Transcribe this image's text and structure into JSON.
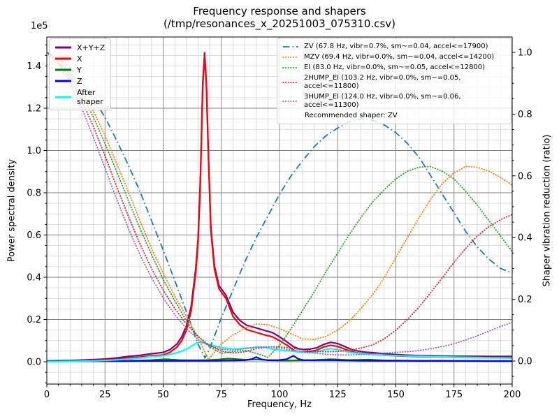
{
  "title": {
    "line1": "Frequency response and shapers",
    "line2": "(/tmp/resonances_x_20251003_075310.csv)"
  },
  "axes": {
    "x": {
      "label": "Frequency, Hz",
      "min": 0,
      "max": 200,
      "tick_labels": [
        "0",
        "25",
        "50",
        "75",
        "100",
        "125",
        "150",
        "175",
        "200"
      ],
      "minor_step": 5
    },
    "y_left": {
      "label": "Power spectral density",
      "offset_text": "1e5",
      "tick_labels": [
        "0.0",
        "0.2",
        "0.4",
        "0.6",
        "0.8",
        "1.0",
        "1.2",
        "1.4"
      ],
      "minor_step": 0.05
    },
    "y_right": {
      "label": "Shaper vibration reduction (ratio)",
      "tick_labels": [
        "0.0",
        "0.2",
        "0.4",
        "0.6",
        "0.8",
        "1.0"
      ],
      "minor_step": 0.05
    }
  },
  "grid": {
    "major_color": "#808080",
    "minor_color": "#d3d3d3",
    "visible": "major+minor"
  },
  "legend_psd": {
    "entries": [
      {
        "label": "X+Y+Z",
        "color": "#800080"
      },
      {
        "label": "X",
        "color": "#ff0000"
      },
      {
        "label": "Y",
        "color": "#008000"
      },
      {
        "label": "Z",
        "color": "#0000ff"
      },
      {
        "label": "After\nshaper",
        "color": "#00ffff"
      }
    ]
  },
  "legend_shapers": {
    "entries": [
      {
        "label": "ZV (67.8 Hz, vibr=0.7%, sm~=0.04, accel<=17900)",
        "color": "#1f77b4",
        "linestyle": "dashdot"
      },
      {
        "label": "MZV (69.4 Hz, vibr=0.0%, sm~=0.04, accel<=14200)",
        "color": "#ff7f0e",
        "linestyle": "dotted"
      },
      {
        "label": "EI (83.0 Hz, vibr=0.0%, sm~=0.05, accel<=12800)",
        "color": "#2ca02c",
        "linestyle": "dotted"
      },
      {
        "label": "2HUMP_EI (103.2 Hz, vibr=0.0%, sm~=0.05, accel<=11800)",
        "color": "#d62728",
        "linestyle": "dotted"
      },
      {
        "label": "3HUMP_EI (124.0 Hz, vibr=0.0%, sm~=0.06, accel<=11300)",
        "color": "#9467bd",
        "linestyle": "dotted"
      }
    ],
    "footer": "Recommended shaper: ZV"
  },
  "chart_data": {
    "type": "line",
    "title": "Frequency response and shapers (/tmp/resonances_x_20251003_075310.csv)",
    "xlabel": "Frequency, Hz",
    "ylabel_left": "Power spectral density (1e5)",
    "ylabel_right": "Shaper vibration reduction (ratio)",
    "xlim": [
      0,
      200
    ],
    "ylim_left_1e5": [
      -0.106,
      1.537
    ],
    "ylim_right": [
      -0.072,
      1.05
    ],
    "recommended_shaper": "ZV",
    "psd_series": [
      {
        "name": "X+Y+Z",
        "color": "#800080",
        "linestyle": "solid",
        "axis": "left",
        "x": [
          0,
          5,
          10,
          15,
          20,
          25,
          30,
          35,
          40,
          45,
          50,
          53,
          56,
          58,
          60,
          62,
          64,
          65,
          66,
          67,
          67.8,
          68.6,
          69.5,
          70.5,
          72,
          74,
          77,
          80,
          83,
          86,
          90,
          94,
          97,
          100,
          103,
          106,
          108,
          110,
          113,
          116,
          119,
          122,
          125,
          128,
          131,
          134,
          137,
          140,
          145,
          150,
          155,
          160,
          165,
          170,
          175,
          180,
          190,
          200
        ],
        "y_1e5": [
          0.004,
          0.005,
          0.006,
          0.008,
          0.01,
          0.013,
          0.018,
          0.025,
          0.03,
          0.038,
          0.044,
          0.058,
          0.085,
          0.118,
          0.17,
          0.26,
          0.44,
          0.58,
          0.87,
          1.315,
          1.462,
          1.315,
          0.965,
          0.635,
          0.455,
          0.36,
          0.315,
          0.235,
          0.195,
          0.172,
          0.16,
          0.147,
          0.138,
          0.118,
          0.096,
          0.071,
          0.062,
          0.058,
          0.06,
          0.066,
          0.082,
          0.092,
          0.086,
          0.072,
          0.058,
          0.05,
          0.045,
          0.043,
          0.038,
          0.034,
          0.031,
          0.029,
          0.028,
          0.027,
          0.026,
          0.026,
          0.025,
          0.025
        ]
      },
      {
        "name": "X",
        "color": "#ff0000",
        "linestyle": "solid",
        "axis": "left",
        "x": [
          0,
          5,
          10,
          15,
          20,
          25,
          30,
          35,
          40,
          45,
          50,
          53,
          56,
          58,
          60,
          62,
          64,
          65,
          66,
          67,
          67.8,
          68.6,
          69.5,
          70.5,
          72,
          74,
          77,
          80,
          83,
          86,
          90,
          94,
          97,
          100,
          103,
          106,
          108,
          110,
          113,
          116,
          119,
          122,
          125,
          128,
          131,
          134,
          137,
          140,
          145,
          150,
          155,
          160,
          165,
          170,
          175,
          180,
          190,
          200
        ],
        "y_1e5": [
          0.002,
          0.002,
          0.003,
          0.004,
          0.005,
          0.008,
          0.012,
          0.018,
          0.022,
          0.028,
          0.032,
          0.045,
          0.07,
          0.1,
          0.15,
          0.24,
          0.42,
          0.56,
          0.85,
          1.3,
          1.45,
          1.3,
          0.95,
          0.62,
          0.44,
          0.345,
          0.3,
          0.215,
          0.175,
          0.152,
          0.139,
          0.126,
          0.118,
          0.1,
          0.08,
          0.055,
          0.047,
          0.045,
          0.048,
          0.055,
          0.07,
          0.078,
          0.072,
          0.06,
          0.048,
          0.041,
          0.037,
          0.035,
          0.031,
          0.028,
          0.026,
          0.024,
          0.023,
          0.022,
          0.021,
          0.021,
          0.02,
          0.02
        ]
      },
      {
        "name": "Y",
        "color": "#008000",
        "linestyle": "solid",
        "axis": "left",
        "x": [
          0,
          10,
          20,
          30,
          40,
          45,
          48,
          51,
          54,
          57,
          60,
          65,
          70,
          74,
          78,
          82,
          86,
          90,
          93,
          96,
          100,
          105,
          110,
          115,
          119,
          122,
          126,
          130,
          134,
          138,
          142,
          146,
          150,
          160,
          170,
          180,
          190,
          200
        ],
        "y_1e5": [
          0.002,
          0.003,
          0.004,
          0.005,
          0.006,
          0.008,
          0.01,
          0.012,
          0.01,
          0.008,
          0.007,
          0.007,
          0.008,
          0.011,
          0.015,
          0.012,
          0.009,
          0.011,
          0.009,
          0.007,
          0.006,
          0.006,
          0.007,
          0.008,
          0.01,
          0.012,
          0.01,
          0.008,
          0.009,
          0.01,
          0.008,
          0.006,
          0.006,
          0.005,
          0.005,
          0.004,
          0.004,
          0.004
        ]
      },
      {
        "name": "Z",
        "color": "#0000ff",
        "linestyle": "solid",
        "axis": "left",
        "x": [
          0,
          10,
          20,
          30,
          40,
          50,
          60,
          70,
          80,
          85,
          88,
          90,
          92,
          95,
          100,
          103,
          106,
          108,
          110,
          115,
          120,
          125,
          130,
          140,
          150,
          160,
          170,
          180,
          190,
          200
        ],
        "y_1e5": [
          0.002,
          0.002,
          0.003,
          0.003,
          0.004,
          0.004,
          0.005,
          0.005,
          0.006,
          0.007,
          0.012,
          0.022,
          0.012,
          0.007,
          0.008,
          0.012,
          0.028,
          0.014,
          0.008,
          0.007,
          0.008,
          0.007,
          0.006,
          0.005,
          0.005,
          0.004,
          0.004,
          0.004,
          0.003,
          0.003
        ]
      },
      {
        "name": "After shaper",
        "color": "#00ffff",
        "linestyle": "solid",
        "axis": "left",
        "x": [
          0,
          5,
          10,
          15,
          20,
          25,
          30,
          35,
          40,
          45,
          50,
          55,
          58,
          61,
          63,
          65,
          67,
          69,
          71,
          74,
          77,
          80,
          84,
          88,
          91,
          94,
          97,
          100,
          104,
          107,
          110,
          113,
          116,
          119,
          122,
          125,
          128,
          131,
          135,
          140,
          145,
          150,
          155,
          160,
          165,
          170,
          175,
          180,
          185,
          190,
          195,
          200
        ],
        "y_1e5": [
          0.001,
          0.001,
          0.002,
          0.003,
          0.004,
          0.006,
          0.009,
          0.013,
          0.018,
          0.024,
          0.028,
          0.04,
          0.05,
          0.065,
          0.08,
          0.092,
          0.09,
          0.084,
          0.078,
          0.07,
          0.064,
          0.06,
          0.062,
          0.066,
          0.07,
          0.068,
          0.06,
          0.056,
          0.052,
          0.048,
          0.044,
          0.042,
          0.046,
          0.056,
          0.062,
          0.058,
          0.05,
          0.043,
          0.038,
          0.034,
          0.031,
          0.029,
          0.027,
          0.026,
          0.024,
          0.023,
          0.022,
          0.021,
          0.02,
          0.019,
          0.018,
          0.017
        ]
      }
    ],
    "shaper_series": [
      {
        "name": "ZV",
        "color": "#1f77b4",
        "linestyle": "dashdot",
        "axis": "right",
        "x": [
          0,
          5,
          10,
          15,
          20,
          25,
          30,
          35,
          40,
          45,
          50,
          55,
          60,
          65,
          68,
          70,
          75,
          80,
          85,
          90,
          95,
          100,
          105,
          110,
          115,
          120,
          125,
          130,
          135,
          140,
          145,
          150,
          155,
          160,
          165,
          170,
          175,
          180,
          185,
          190,
          195,
          200
        ],
        "ratio": [
          1.0,
          0.98,
          0.95,
          0.905,
          0.85,
          0.79,
          0.715,
          0.635,
          0.55,
          0.455,
          0.36,
          0.26,
          0.16,
          0.055,
          0.01,
          0.04,
          0.14,
          0.23,
          0.32,
          0.4,
          0.47,
          0.54,
          0.6,
          0.65,
          0.695,
          0.73,
          0.755,
          0.775,
          0.785,
          0.78,
          0.765,
          0.74,
          0.705,
          0.66,
          0.6,
          0.54,
          0.48,
          0.42,
          0.37,
          0.33,
          0.3,
          0.285
        ]
      },
      {
        "name": "MZV",
        "color": "#ff7f0e",
        "linestyle": "dotted",
        "axis": "right",
        "x": [
          0,
          5,
          10,
          15,
          20,
          25,
          30,
          35,
          40,
          45,
          50,
          55,
          60,
          65,
          69.4,
          75,
          80,
          85,
          90,
          95,
          100,
          105,
          110,
          115,
          120,
          125,
          130,
          135,
          140,
          145,
          150,
          155,
          160,
          165,
          170,
          175,
          180,
          185,
          190,
          195,
          200
        ],
        "ratio": [
          1.0,
          0.975,
          0.935,
          0.88,
          0.81,
          0.73,
          0.64,
          0.55,
          0.455,
          0.365,
          0.285,
          0.21,
          0.145,
          0.075,
          0.005,
          0.055,
          0.085,
          0.105,
          0.12,
          0.118,
          0.105,
          0.088,
          0.072,
          0.07,
          0.08,
          0.1,
          0.13,
          0.17,
          0.215,
          0.27,
          0.335,
          0.4,
          0.465,
          0.525,
          0.575,
          0.61,
          0.63,
          0.628,
          0.615,
          0.595,
          0.57
        ]
      },
      {
        "name": "EI",
        "color": "#2ca02c",
        "linestyle": "dotted",
        "axis": "right",
        "x": [
          0,
          5,
          10,
          15,
          20,
          25,
          30,
          35,
          40,
          45,
          50,
          55,
          60,
          65,
          70,
          75,
          80,
          85,
          90,
          95,
          100,
          105,
          110,
          115,
          120,
          125,
          130,
          135,
          140,
          145,
          150,
          155,
          160,
          165,
          170,
          175,
          180,
          185,
          190,
          195,
          200
        ],
        "ratio": [
          1.0,
          0.97,
          0.925,
          0.865,
          0.79,
          0.705,
          0.615,
          0.52,
          0.43,
          0.345,
          0.265,
          0.195,
          0.13,
          0.08,
          0.045,
          0.025,
          0.03,
          0.035,
          0.025,
          0.012,
          0.05,
          0.105,
          0.165,
          0.225,
          0.29,
          0.35,
          0.41,
          0.465,
          0.515,
          0.555,
          0.59,
          0.615,
          0.628,
          0.63,
          0.615,
          0.59,
          0.55,
          0.505,
          0.455,
          0.405,
          0.355
        ]
      },
      {
        "name": "2HUMP_EI",
        "color": "#d62728",
        "linestyle": "dotted",
        "axis": "right",
        "x": [
          0,
          5,
          10,
          15,
          20,
          25,
          30,
          35,
          40,
          45,
          50,
          55,
          60,
          65,
          70,
          75,
          80,
          85,
          90,
          95,
          100,
          105,
          110,
          115,
          120,
          125,
          130,
          135,
          140,
          145,
          150,
          155,
          160,
          165,
          170,
          175,
          180,
          185,
          190,
          195,
          200
        ],
        "ratio": [
          1.0,
          0.965,
          0.915,
          0.845,
          0.76,
          0.665,
          0.565,
          0.47,
          0.38,
          0.3,
          0.23,
          0.17,
          0.12,
          0.08,
          0.05,
          0.032,
          0.026,
          0.03,
          0.04,
          0.046,
          0.046,
          0.042,
          0.036,
          0.031,
          0.03,
          0.031,
          0.035,
          0.042,
          0.052,
          0.072,
          0.1,
          0.135,
          0.175,
          0.222,
          0.27,
          0.32,
          0.365,
          0.405,
          0.435,
          0.458,
          0.475
        ]
      },
      {
        "name": "3HUMP_EI",
        "color": "#9467bd",
        "linestyle": "dotted",
        "axis": "right",
        "x": [
          0,
          5,
          10,
          15,
          20,
          25,
          30,
          35,
          40,
          45,
          50,
          55,
          60,
          65,
          70,
          75,
          80,
          85,
          90,
          95,
          100,
          105,
          110,
          115,
          120,
          125,
          130,
          135,
          140,
          145,
          150,
          155,
          160,
          165,
          170,
          175,
          180,
          185,
          190,
          195,
          200
        ],
        "ratio": [
          1.0,
          0.96,
          0.9,
          0.82,
          0.725,
          0.625,
          0.525,
          0.43,
          0.345,
          0.27,
          0.205,
          0.15,
          0.105,
          0.07,
          0.05,
          0.038,
          0.035,
          0.04,
          0.045,
          0.046,
          0.042,
          0.036,
          0.03,
          0.026,
          0.022,
          0.02,
          0.02,
          0.021,
          0.023,
          0.026,
          0.028,
          0.03,
          0.034,
          0.04,
          0.047,
          0.056,
          0.068,
          0.082,
          0.097,
          0.112,
          0.125
        ]
      }
    ]
  }
}
